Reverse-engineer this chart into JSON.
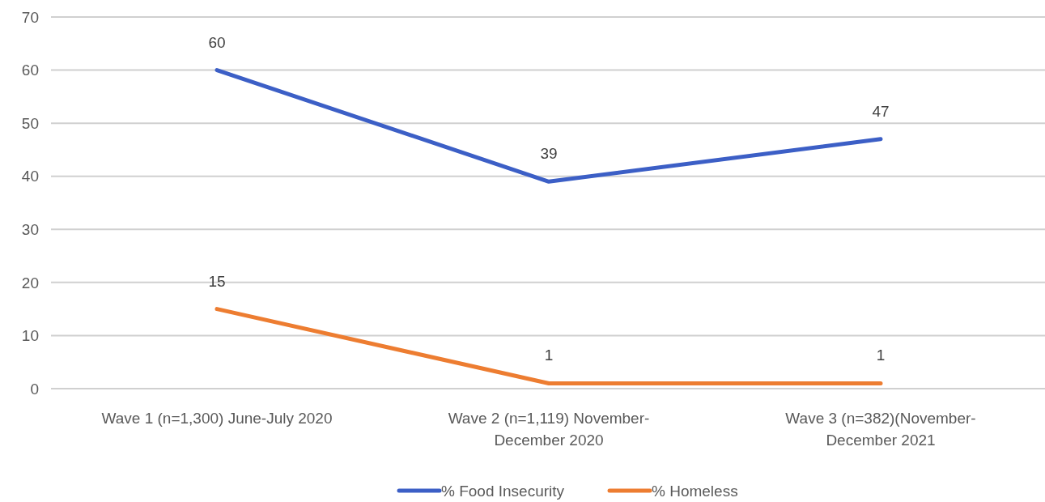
{
  "chart_data": {
    "type": "line",
    "categories": [
      "Wave 1 (n=1,300) June-July 2020",
      "Wave 2 (n=1,119) November-December 2020",
      "Wave 3 (n=382)(November-December 2021"
    ],
    "series": [
      {
        "name": "% Food Insecurity",
        "color": "#3c5fc6",
        "values": [
          60,
          39,
          47
        ]
      },
      {
        "name": "% Homeless",
        "color": "#ed7d31",
        "values": [
          15,
          1,
          1
        ]
      }
    ],
    "ylim": [
      0,
      70
    ],
    "yticks": [
      0,
      10,
      20,
      30,
      40,
      50,
      60,
      70
    ],
    "grid": "y",
    "legend": "bottom",
    "data_labels": true,
    "marker": "none",
    "line_style": "solid"
  }
}
